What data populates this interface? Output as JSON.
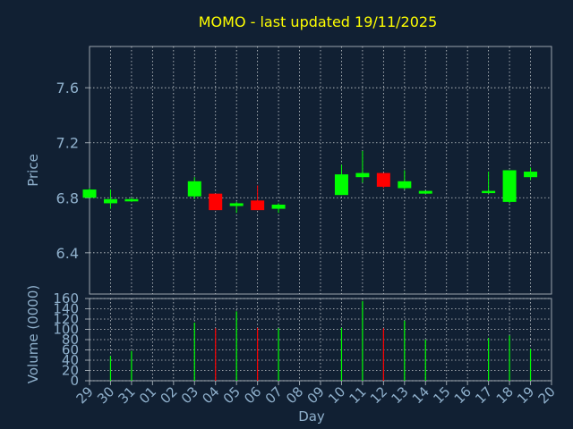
{
  "title": "MOMO - last updated 19/11/2025",
  "chart_data": [
    {
      "type": "candlestick",
      "title": "MOMO - last updated 19/11/2025",
      "ylabel": "Price",
      "ylim": [
        6.1,
        7.9
      ],
      "yticks": [
        "6.4",
        "6.8",
        "7.2",
        "7.6"
      ],
      "grid": true,
      "colors": {
        "up": "#00ff00",
        "down": "#ff0000"
      },
      "candles": [
        {
          "day": "29",
          "open": 6.8,
          "high": 6.87,
          "low": 6.8,
          "close": 6.86
        },
        {
          "day": "30",
          "open": 6.76,
          "high": 6.86,
          "low": 6.72,
          "close": 6.79
        },
        {
          "day": "31",
          "open": 6.78,
          "high": 6.8,
          "low": 6.77,
          "close": 6.79
        },
        {
          "day": "03",
          "open": 6.81,
          "high": 6.95,
          "low": 6.79,
          "close": 6.92
        },
        {
          "day": "04",
          "open": 6.83,
          "high": 6.83,
          "low": 6.71,
          "close": 6.71
        },
        {
          "day": "05",
          "open": 6.74,
          "high": 6.77,
          "low": 6.69,
          "close": 6.76
        },
        {
          "day": "06",
          "open": 6.78,
          "high": 6.89,
          "low": 6.71,
          "close": 6.71
        },
        {
          "day": "07",
          "open": 6.72,
          "high": 6.76,
          "low": 6.69,
          "close": 6.75
        },
        {
          "day": "10",
          "open": 6.82,
          "high": 7.04,
          "low": 6.82,
          "close": 6.97
        },
        {
          "day": "11",
          "open": 6.95,
          "high": 7.14,
          "low": 6.91,
          "close": 6.98
        },
        {
          "day": "12",
          "open": 6.98,
          "high": 6.98,
          "low": 6.87,
          "close": 6.88
        },
        {
          "day": "13",
          "open": 6.87,
          "high": 7.0,
          "low": 6.86,
          "close": 6.92
        },
        {
          "day": "14",
          "open": 6.83,
          "high": 6.85,
          "low": 6.83,
          "close": 6.85
        },
        {
          "day": "17",
          "open": 6.84,
          "high": 6.99,
          "low": 6.83,
          "close": 6.85
        },
        {
          "day": "18",
          "open": 6.77,
          "high": 7.0,
          "low": 6.76,
          "close": 7.0
        },
        {
          "day": "19",
          "open": 6.95,
          "high": 7.02,
          "low": 6.93,
          "close": 6.99
        }
      ]
    },
    {
      "type": "bar",
      "xlabel": "Day",
      "ylabel": "Volume (0000)",
      "ylim": [
        0,
        160
      ],
      "yticks": [
        "0",
        "20",
        "40",
        "60",
        "80",
        "100",
        "120",
        "140",
        "160"
      ],
      "categories": [
        "29",
        "30",
        "31",
        "01",
        "02",
        "03",
        "04",
        "05",
        "06",
        "07",
        "08",
        "09",
        "10",
        "11",
        "12",
        "13",
        "14",
        "15",
        "16",
        "17",
        "18",
        "19",
        "20"
      ],
      "volumes": [
        {
          "day": "30",
          "value": 48,
          "dir": "up"
        },
        {
          "day": "31",
          "value": 58,
          "dir": "up"
        },
        {
          "day": "03",
          "value": 113,
          "dir": "up"
        },
        {
          "day": "04",
          "value": 102,
          "dir": "down"
        },
        {
          "day": "05",
          "value": 135,
          "dir": "up"
        },
        {
          "day": "06",
          "value": 103,
          "dir": "down"
        },
        {
          "day": "07",
          "value": 102,
          "dir": "up"
        },
        {
          "day": "10",
          "value": 103,
          "dir": "up"
        },
        {
          "day": "11",
          "value": 155,
          "dir": "up"
        },
        {
          "day": "12",
          "value": 102,
          "dir": "down"
        },
        {
          "day": "13",
          "value": 117,
          "dir": "up"
        },
        {
          "day": "14",
          "value": 80,
          "dir": "up"
        },
        {
          "day": "17",
          "value": 83,
          "dir": "up"
        },
        {
          "day": "18",
          "value": 88,
          "dir": "up"
        },
        {
          "day": "19",
          "value": 62,
          "dir": "up"
        }
      ]
    }
  ]
}
